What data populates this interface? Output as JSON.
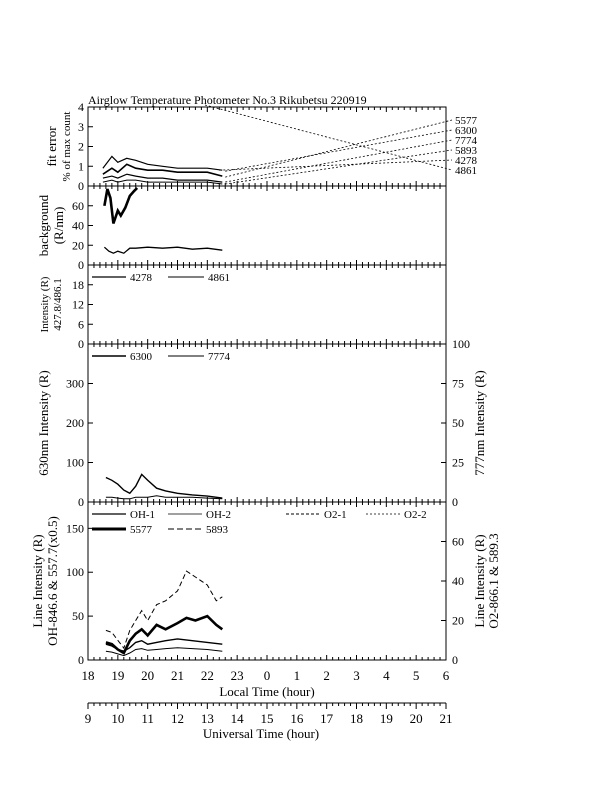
{
  "header": {
    "title": "Airglow Temperature Photometer No.3  Rikubetsu    220919"
  },
  "chart_data": [
    {
      "panel": "fit_error",
      "type": "line",
      "ylabel_line1": "fit error",
      "ylabel_line2": "% of max count",
      "ylim": [
        0,
        4
      ],
      "yticks": [
        "0",
        "1",
        "2",
        "3",
        "4"
      ],
      "legend": [
        "5577",
        "6300",
        "7774",
        "5893",
        "4278",
        "4861"
      ],
      "series": [
        {
          "name": "5577",
          "x": [
            18.5,
            18.8,
            19.0,
            19.3,
            19.6,
            20.0,
            20.5,
            21.0,
            21.5,
            22.0,
            22.5
          ],
          "y": [
            0.6,
            0.9,
            0.7,
            1.1,
            0.9,
            0.8,
            0.8,
            0.7,
            0.7,
            0.7,
            0.5
          ]
        },
        {
          "name": "6300",
          "x": [
            18.5,
            18.8,
            19.0,
            19.3,
            19.6,
            20.0,
            20.5,
            21.0,
            21.5,
            22.0,
            22.5
          ],
          "y": [
            0.9,
            1.5,
            1.2,
            1.4,
            1.3,
            1.1,
            1.0,
            0.9,
            0.9,
            0.9,
            0.8
          ]
        },
        {
          "name": "7774",
          "x": [
            18.5,
            18.8,
            19.0,
            19.3,
            19.6,
            20.0,
            20.5,
            21.0,
            21.5,
            22.0,
            22.5
          ],
          "y": [
            0.4,
            0.5,
            0.4,
            0.6,
            0.5,
            0.4,
            0.4,
            0.3,
            0.3,
            0.3,
            0.2
          ]
        },
        {
          "name": "5893",
          "x": [
            18.5,
            18.8,
            19.0,
            19.3,
            19.6,
            20.0,
            20.5,
            21.0,
            21.5,
            22.0,
            22.5
          ],
          "y": [
            0.2,
            0.3,
            0.2,
            0.3,
            0.3,
            0.2,
            0.2,
            0.2,
            0.2,
            0.2,
            0.1
          ]
        }
      ]
    },
    {
      "panel": "background",
      "type": "line",
      "ylabel_line1": "background",
      "ylabel_line2": "(R/nm)",
      "ylim": [
        0,
        80
      ],
      "yticks": [
        "0",
        "20",
        "40",
        "60"
      ],
      "series": [
        {
          "name": "",
          "x": [
            18.55,
            18.65,
            18.75,
            18.85,
            19.0,
            19.1,
            19.25,
            19.4,
            19.55,
            19.65
          ],
          "y": [
            60,
            77,
            68,
            42,
            55,
            50,
            58,
            70,
            75,
            78
          ]
        },
        {
          "name": "",
          "x": [
            18.55,
            18.7,
            18.85,
            19.0,
            19.2,
            19.4,
            19.6,
            20.0,
            20.5,
            21.0,
            21.5,
            22.0,
            22.5
          ],
          "y": [
            18,
            14,
            12,
            14,
            12,
            17,
            17,
            18,
            17,
            18,
            16,
            17,
            15
          ]
        }
      ]
    },
    {
      "panel": "intensity_4278",
      "type": "line",
      "ylabel_line1": "Intensity (R)",
      "ylabel_line2": "427.8/486.1",
      "ylim": [
        0,
        24
      ],
      "yticks": [
        "0",
        "6",
        "12",
        "18"
      ],
      "legend": [
        "4278",
        "4861"
      ],
      "series": []
    },
    {
      "panel": "intensity_630",
      "type": "line",
      "ylabel_left": "630nm Intensity (R)",
      "ylabel_right": "777nm Intensity (R)",
      "ylim_left": [
        0,
        400
      ],
      "ylim_right": [
        0,
        100
      ],
      "yticks_left": [
        "0",
        "100",
        "200",
        "300"
      ],
      "yticks_right": [
        "0",
        "25",
        "50",
        "75",
        "100"
      ],
      "legend": [
        "6300",
        "7774"
      ],
      "series": [
        {
          "name": "6300",
          "x": [
            18.6,
            18.8,
            19.0,
            19.2,
            19.4,
            19.6,
            19.8,
            20.0,
            20.3,
            20.6,
            21.0,
            21.5,
            22.0,
            22.5
          ],
          "y": [
            62,
            55,
            45,
            30,
            22,
            40,
            70,
            55,
            35,
            28,
            22,
            18,
            15,
            10
          ]
        },
        {
          "name": "7774",
          "x": [
            18.6,
            18.8,
            19.0,
            19.2,
            19.4,
            19.6,
            19.8,
            20.0,
            20.3,
            20.6,
            21.0,
            21.5,
            22.0,
            22.5
          ],
          "y": [
            3,
            3,
            2.5,
            2,
            2,
            3,
            3,
            3,
            4,
            3,
            3,
            3,
            2.5,
            2
          ]
        }
      ]
    },
    {
      "panel": "line_intensity",
      "type": "line",
      "ylabel_left_line1": "Line Intensity (R)",
      "ylabel_left_line2": "OH-846.6 & 557.7(x0.5)",
      "ylabel_right_line1": "Line Intensity (R)",
      "ylabel_right_line2": "O2-866.1 & 589.3",
      "ylim_left": [
        0,
        180
      ],
      "ylim_right": [
        0,
        80
      ],
      "yticks_left": [
        "0",
        "50",
        "100",
        "150"
      ],
      "yticks_right": [
        "0",
        "20",
        "40",
        "60"
      ],
      "legend": [
        "OH-1",
        "OH-2",
        "O2-1",
        "O2-2",
        "5577",
        "5893"
      ],
      "series": [
        {
          "name": "5577",
          "x": [
            18.6,
            18.8,
            19.0,
            19.2,
            19.4,
            19.6,
            19.8,
            20.0,
            20.3,
            20.6,
            21.0,
            21.3,
            21.6,
            22.0,
            22.3,
            22.5
          ],
          "y": [
            20,
            18,
            12,
            8,
            22,
            30,
            35,
            28,
            40,
            35,
            42,
            48,
            45,
            50,
            40,
            35
          ]
        },
        {
          "name": "5893",
          "x": [
            18.6,
            18.8,
            19.0,
            19.2,
            19.4,
            19.6,
            19.8,
            20.0,
            20.3,
            20.6,
            21.0,
            21.3,
            21.6,
            22.0,
            22.3,
            22.5
          ],
          "y": [
            15,
            14,
            10,
            6,
            15,
            20,
            25,
            20,
            28,
            30,
            35,
            45,
            42,
            38,
            30,
            32
          ]
        },
        {
          "name": "OH-1",
          "x": [
            18.6,
            18.8,
            19.0,
            19.2,
            19.4,
            19.6,
            19.8,
            20.0,
            20.3,
            20.6,
            21.0,
            21.5,
            22.0,
            22.5
          ],
          "y": [
            18,
            16,
            12,
            10,
            14,
            20,
            22,
            18,
            20,
            22,
            24,
            22,
            20,
            18
          ]
        },
        {
          "name": "OH-2",
          "x": [
            18.6,
            18.8,
            19.0,
            19.2,
            19.4,
            19.6,
            19.8,
            20.0,
            20.3,
            20.6,
            21.0,
            21.5,
            22.0,
            22.5
          ],
          "y": [
            10,
            9,
            7,
            5,
            8,
            12,
            13,
            11,
            12,
            13,
            14,
            13,
            12,
            10
          ]
        }
      ]
    }
  ],
  "axes": {
    "local_time": {
      "label": "Local Time (hour)",
      "range": [
        18,
        30
      ],
      "ticks": [
        "18",
        "19",
        "20",
        "21",
        "22",
        "23",
        "0",
        "1",
        "2",
        "3",
        "4",
        "5",
        "6"
      ]
    },
    "universal_time": {
      "label": "Universal Time (hour)",
      "range": [
        9,
        21
      ],
      "ticks": [
        "9",
        "10",
        "11",
        "12",
        "13",
        "14",
        "15",
        "16",
        "17",
        "18",
        "19",
        "20",
        "21"
      ]
    }
  }
}
